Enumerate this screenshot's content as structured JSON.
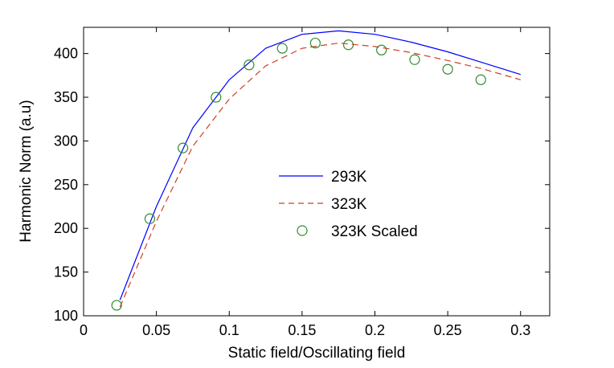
{
  "chart_data": {
    "type": "line",
    "title": "",
    "xlabel": "Static field/Oscillating field",
    "ylabel": "Harmonic Norm (a.u)",
    "xlim": [
      0,
      0.32
    ],
    "ylim": [
      100,
      430
    ],
    "xticks": [
      0,
      0.05,
      0.1,
      0.15,
      0.2,
      0.25,
      0.3
    ],
    "xtick_labels": [
      "0",
      "0.05",
      "0.1",
      "0.15",
      "0.2",
      "0.25",
      "0.3"
    ],
    "yticks": [
      100,
      150,
      200,
      250,
      300,
      350,
      400
    ],
    "ytick_labels": [
      "100",
      "150",
      "200",
      "250",
      "300",
      "350",
      "400"
    ],
    "legend_position": "center",
    "series": [
      {
        "name": "293K",
        "style": "solid",
        "color": "#0000ff",
        "x": [
          0.025,
          0.05,
          0.075,
          0.1,
          0.125,
          0.15,
          0.175,
          0.2,
          0.225,
          0.25,
          0.275,
          0.3
        ],
        "y": [
          118,
          225,
          315,
          370,
          406,
          422,
          426,
          422,
          413,
          402,
          389,
          376
        ]
      },
      {
        "name": "323K",
        "style": "dashed",
        "color": "#cc4125",
        "x": [
          0.025,
          0.05,
          0.075,
          0.1,
          0.125,
          0.15,
          0.175,
          0.2,
          0.225,
          0.25,
          0.275,
          0.3
        ],
        "y": [
          110,
          208,
          294,
          348,
          386,
          406,
          412,
          408,
          401,
          392,
          382,
          370
        ]
      },
      {
        "name": "323K Scaled",
        "style": "marker-circle",
        "color": "#2e8b2e",
        "x": [
          0.0227,
          0.0455,
          0.0682,
          0.0909,
          0.1136,
          0.1364,
          0.1591,
          0.1818,
          0.2045,
          0.2273,
          0.25,
          0.2727
        ],
        "y": [
          112,
          211,
          292,
          350,
          387,
          406,
          412,
          410,
          404,
          393,
          382,
          370
        ]
      }
    ]
  }
}
